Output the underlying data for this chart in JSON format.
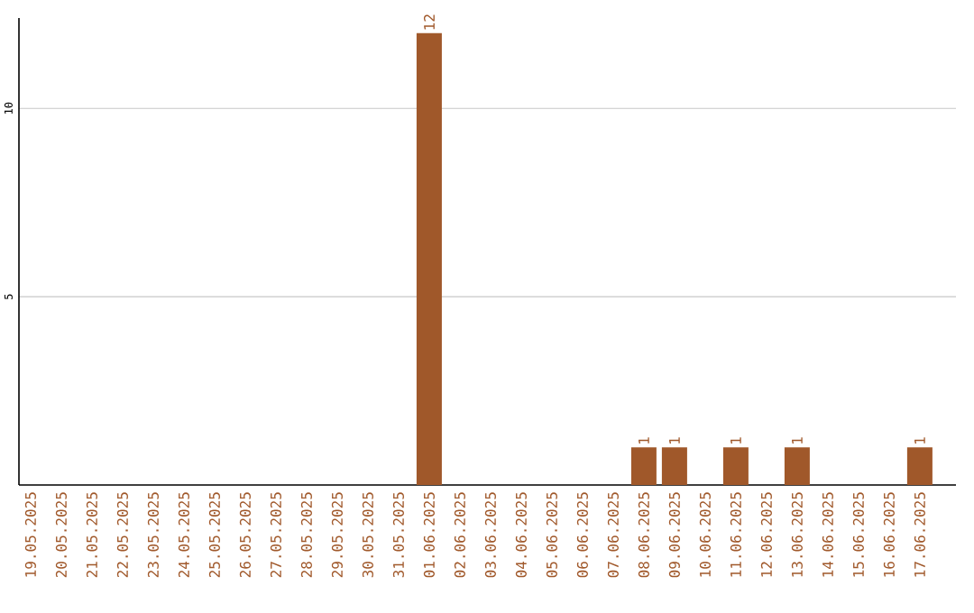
{
  "chart_data": {
    "type": "bar",
    "categories": [
      "19.05.2025",
      "20.05.2025",
      "21.05.2025",
      "22.05.2025",
      "23.05.2025",
      "24.05.2025",
      "25.05.2025",
      "26.05.2025",
      "27.05.2025",
      "28.05.2025",
      "29.05.2025",
      "30.05.2025",
      "31.05.2025",
      "01.06.2025",
      "02.06.2025",
      "03.06.2025",
      "04.06.2025",
      "05.06.2025",
      "06.06.2025",
      "07.06.2025",
      "08.06.2025",
      "09.06.2025",
      "10.06.2025",
      "11.06.2025",
      "12.06.2025",
      "13.06.2025",
      "14.06.2025",
      "15.06.2025",
      "16.06.2025",
      "17.06.2025"
    ],
    "values": [
      0,
      0,
      0,
      0,
      0,
      0,
      0,
      0,
      0,
      0,
      0,
      0,
      0,
      12,
      0,
      0,
      0,
      0,
      0,
      0,
      1,
      1,
      0,
      1,
      0,
      1,
      0,
      0,
      0,
      1
    ],
    "value_labels": [
      null,
      null,
      null,
      null,
      null,
      null,
      null,
      null,
      null,
      null,
      null,
      null,
      null,
      "12",
      null,
      null,
      null,
      null,
      null,
      null,
      "1",
      "1",
      null,
      "1",
      null,
      "1",
      null,
      null,
      null,
      "1"
    ],
    "color": "#a0582a",
    "ylim": [
      0,
      12.4
    ],
    "yticks": [
      5,
      10
    ],
    "grid": "y"
  }
}
